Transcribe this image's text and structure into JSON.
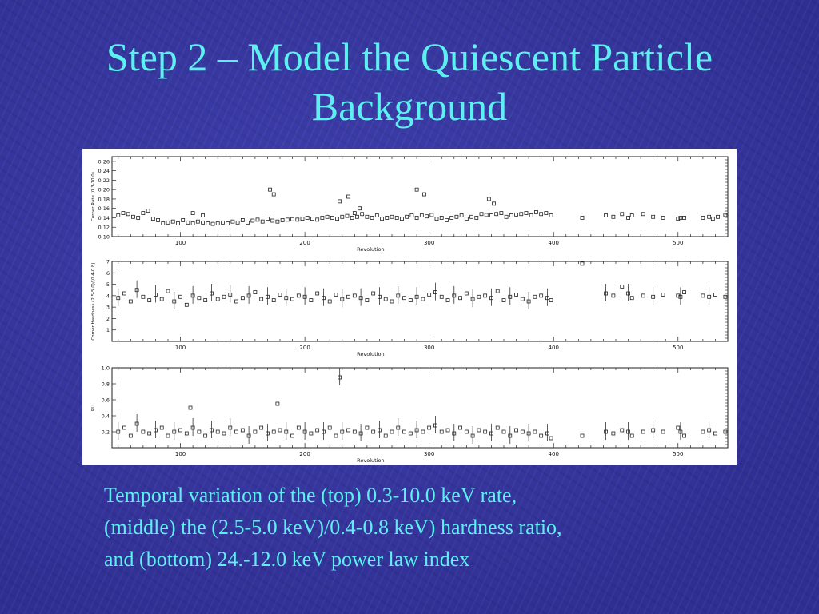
{
  "slide": {
    "title_line1": "Step 2 – Model the Quiescent Particle",
    "title_line2": "Background",
    "caption_line1": "Temporal variation of the (top) 0.3-10.0 keV rate,",
    "caption_line2": "(middle) the (2.5-5.0 keV)/0.4-0.8 keV) hardness ratio,",
    "caption_line3": "and (bottom)  24.-12.0 keV power law index"
  },
  "chart_data": [
    {
      "type": "scatter",
      "xlabel": "Revolution",
      "ylabel": "Corner Rate (0.3-10.0)",
      "xlim": [
        45,
        540
      ],
      "ylim": [
        0.1,
        0.27
      ],
      "xticks": [
        100,
        200,
        300,
        400,
        500
      ],
      "yticks": [
        0.1,
        0.12,
        0.14,
        0.16,
        0.18,
        0.2,
        0.22,
        0.24,
        0.26
      ],
      "ytick_labels": [
        "0.10",
        "0.12",
        "0.14",
        "0.16",
        "0.18",
        "0.20",
        "0.22",
        "0.24",
        "0.26"
      ],
      "x": [
        50,
        54,
        58,
        62,
        66,
        70,
        74,
        78,
        82,
        86,
        90,
        94,
        98,
        102,
        106,
        110,
        114,
        118,
        122,
        126,
        130,
        134,
        138,
        142,
        146,
        150,
        154,
        158,
        162,
        166,
        170,
        174,
        178,
        182,
        186,
        190,
        194,
        198,
        202,
        206,
        210,
        214,
        218,
        222,
        226,
        230,
        234,
        238,
        242,
        246,
        250,
        254,
        258,
        262,
        266,
        270,
        274,
        278,
        282,
        286,
        290,
        294,
        298,
        302,
        306,
        310,
        314,
        318,
        322,
        326,
        330,
        334,
        338,
        342,
        346,
        350,
        354,
        358,
        362,
        366,
        370,
        374,
        378,
        382,
        386,
        390,
        394,
        398,
        423,
        442,
        448,
        455,
        460,
        463,
        472,
        480,
        488,
        500,
        502,
        505,
        520,
        525,
        528,
        532,
        538,
        172,
        175,
        228,
        235,
        240,
        244,
        296,
        348,
        352,
        110,
        118,
        290
      ],
      "y": [
        0.145,
        0.15,
        0.148,
        0.142,
        0.14,
        0.15,
        0.155,
        0.138,
        0.135,
        0.128,
        0.13,
        0.132,
        0.128,
        0.135,
        0.13,
        0.128,
        0.132,
        0.13,
        0.128,
        0.127,
        0.128,
        0.13,
        0.128,
        0.132,
        0.13,
        0.135,
        0.13,
        0.134,
        0.136,
        0.132,
        0.138,
        0.134,
        0.132,
        0.135,
        0.136,
        0.137,
        0.136,
        0.138,
        0.14,
        0.138,
        0.136,
        0.14,
        0.142,
        0.14,
        0.138,
        0.142,
        0.144,
        0.14,
        0.142,
        0.148,
        0.142,
        0.14,
        0.145,
        0.138,
        0.14,
        0.142,
        0.14,
        0.138,
        0.142,
        0.145,
        0.14,
        0.145,
        0.143,
        0.146,
        0.138,
        0.14,
        0.135,
        0.14,
        0.142,
        0.145,
        0.138,
        0.142,
        0.14,
        0.148,
        0.146,
        0.145,
        0.148,
        0.15,
        0.142,
        0.145,
        0.147,
        0.148,
        0.15,
        0.145,
        0.152,
        0.148,
        0.15,
        0.145,
        0.14,
        0.145,
        0.142,
        0.148,
        0.14,
        0.145,
        0.148,
        0.142,
        0.14,
        0.138,
        0.14,
        0.14,
        0.14,
        0.142,
        0.138,
        0.142,
        0.146,
        0.2,
        0.19,
        0.175,
        0.185,
        0.15,
        0.16,
        0.19,
        0.18,
        0.17,
        0.15,
        0.145,
        0.2
      ],
      "annotations": []
    },
    {
      "type": "scatter",
      "xlabel": "Revolution",
      "ylabel": "Corner Hardness (2.5-5.0)/(0.4-0.8)",
      "xlim": [
        45,
        540
      ],
      "ylim": [
        0,
        7
      ],
      "xticks": [
        100,
        200,
        300,
        400,
        500
      ],
      "yticks": [
        1,
        2,
        3,
        4,
        5,
        6,
        7
      ],
      "ytick_labels": [
        "1",
        "2",
        "3",
        "4",
        "5",
        "6",
        "7"
      ],
      "x": [
        50,
        55,
        60,
        65,
        70,
        75,
        80,
        85,
        90,
        95,
        100,
        105,
        110,
        115,
        120,
        125,
        130,
        135,
        140,
        145,
        150,
        155,
        160,
        165,
        170,
        175,
        180,
        185,
        190,
        195,
        200,
        205,
        210,
        215,
        220,
        225,
        230,
        235,
        240,
        245,
        250,
        255,
        260,
        265,
        270,
        275,
        280,
        285,
        290,
        295,
        300,
        305,
        310,
        315,
        320,
        325,
        330,
        335,
        340,
        345,
        350,
        355,
        360,
        365,
        370,
        375,
        380,
        385,
        390,
        395,
        398,
        423,
        442,
        448,
        455,
        460,
        463,
        472,
        480,
        488,
        500,
        502,
        505,
        520,
        525,
        530,
        538
      ],
      "y": [
        3.8,
        4.2,
        3.5,
        4.5,
        3.9,
        3.6,
        4.1,
        3.7,
        4.4,
        3.5,
        3.9,
        3.2,
        4.0,
        3.8,
        3.6,
        4.2,
        3.7,
        3.9,
        4.1,
        3.5,
        3.8,
        4.0,
        4.3,
        3.7,
        3.9,
        3.6,
        4.1,
        3.8,
        3.7,
        4.0,
        3.9,
        3.6,
        4.2,
        3.8,
        3.5,
        4.1,
        3.7,
        3.9,
        4.0,
        3.8,
        3.6,
        4.2,
        3.9,
        3.7,
        3.5,
        4.0,
        3.8,
        3.6,
        3.9,
        3.7,
        4.1,
        4.3,
        3.9,
        3.6,
        4.0,
        3.8,
        4.2,
        3.7,
        3.9,
        4.0,
        3.8,
        4.4,
        3.6,
        3.9,
        4.1,
        3.7,
        3.5,
        3.9,
        4.0,
        3.8,
        3.6,
        6.8,
        4.2,
        4.0,
        4.8,
        4.2,
        3.8,
        4.0,
        3.9,
        4.1,
        4.0,
        3.9,
        4.3,
        4.0,
        3.9,
        4.1,
        3.9
      ],
      "annotations": []
    },
    {
      "type": "scatter",
      "xlabel": "Revolution",
      "ylabel": "PLI",
      "xlim": [
        45,
        540
      ],
      "ylim": [
        0,
        1.0
      ],
      "xticks": [
        100,
        200,
        300,
        400,
        500
      ],
      "yticks": [
        0.2,
        0.4,
        0.6,
        0.8,
        1.0
      ],
      "ytick_labels": [
        "0.2",
        "0.4",
        "0.6",
        "0.8",
        "1.0"
      ],
      "x": [
        50,
        55,
        60,
        65,
        70,
        75,
        80,
        85,
        90,
        95,
        100,
        105,
        110,
        115,
        120,
        125,
        130,
        135,
        140,
        145,
        150,
        155,
        160,
        165,
        170,
        175,
        180,
        185,
        190,
        195,
        200,
        205,
        210,
        215,
        220,
        225,
        230,
        235,
        240,
        245,
        250,
        255,
        260,
        265,
        270,
        275,
        280,
        285,
        290,
        295,
        300,
        305,
        310,
        315,
        320,
        325,
        330,
        335,
        340,
        345,
        350,
        355,
        360,
        365,
        370,
        375,
        380,
        385,
        390,
        395,
        398,
        423,
        442,
        448,
        455,
        460,
        463,
        472,
        480,
        488,
        500,
        502,
        505,
        520,
        525,
        530,
        538,
        228,
        178,
        108
      ],
      "y": [
        0.2,
        0.25,
        0.15,
        0.3,
        0.2,
        0.18,
        0.22,
        0.25,
        0.15,
        0.2,
        0.22,
        0.18,
        0.25,
        0.2,
        0.15,
        0.22,
        0.2,
        0.18,
        0.25,
        0.2,
        0.22,
        0.15,
        0.2,
        0.25,
        0.18,
        0.2,
        0.22,
        0.2,
        0.15,
        0.25,
        0.2,
        0.18,
        0.22,
        0.2,
        0.25,
        0.15,
        0.2,
        0.22,
        0.2,
        0.18,
        0.25,
        0.2,
        0.22,
        0.15,
        0.2,
        0.25,
        0.2,
        0.18,
        0.22,
        0.2,
        0.25,
        0.28,
        0.2,
        0.22,
        0.18,
        0.25,
        0.2,
        0.15,
        0.22,
        0.2,
        0.18,
        0.25,
        0.2,
        0.15,
        0.22,
        0.2,
        0.18,
        0.2,
        0.15,
        0.18,
        0.12,
        0.15,
        0.2,
        0.18,
        0.22,
        0.2,
        0.15,
        0.2,
        0.22,
        0.2,
        0.25,
        0.2,
        0.15,
        0.2,
        0.22,
        0.18,
        0.2,
        0.88,
        0.55,
        0.5
      ],
      "annotations": []
    }
  ]
}
